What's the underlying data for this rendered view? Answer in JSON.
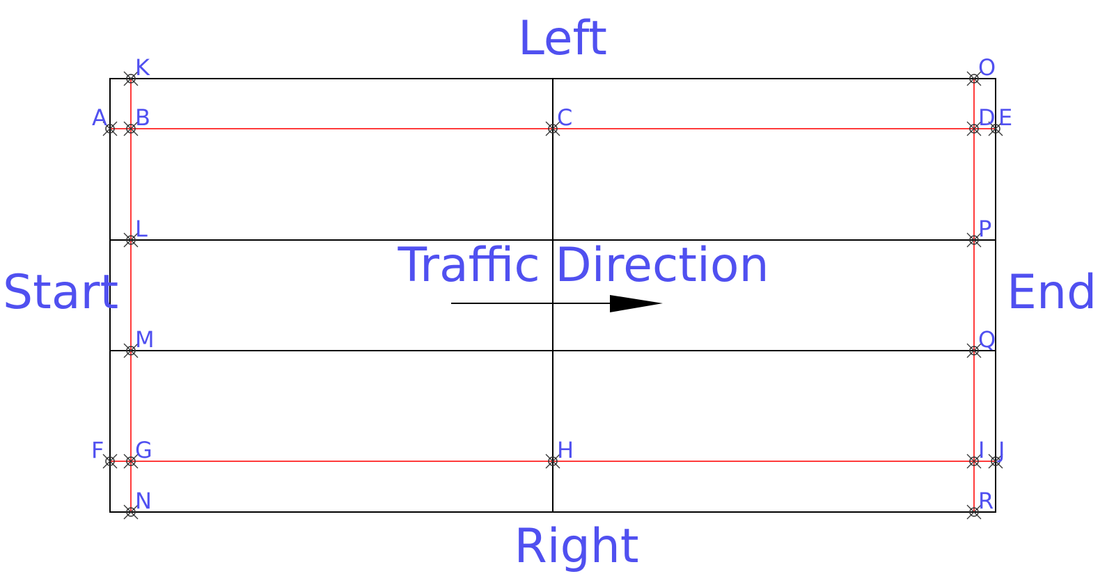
{
  "colors": {
    "text": "#5050f0",
    "grid": "#000000",
    "survey_line": "#ff3b3b",
    "marker": "#333333",
    "background": "#ffffff"
  },
  "captions": {
    "left": "Left",
    "right": "Right",
    "start": "Start",
    "end": "End",
    "traffic": "Traffic Direction"
  },
  "points": {
    "A": "A",
    "B": "B",
    "C": "C",
    "D": "D",
    "E": "E",
    "F": "F",
    "G": "G",
    "H": "H",
    "I": "I",
    "J": "J",
    "K": "K",
    "L": "L",
    "M": "M",
    "N": "N",
    "O": "O",
    "P": "P",
    "Q": "Q",
    "R": "R"
  },
  "icons": {
    "point_marker": "crossed-circle-icon",
    "direction": "arrow-right-icon"
  }
}
